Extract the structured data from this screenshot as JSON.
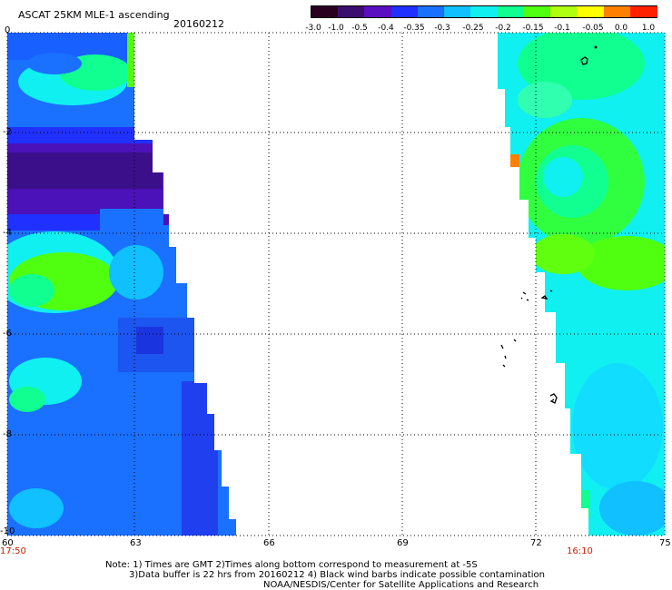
{
  "header": {
    "title": "ASCAT 25KM MLE-1 ascending",
    "date": "20160212"
  },
  "colorbar": {
    "labels": [
      "-3.0",
      "-1.0",
      "-0.5",
      "-0.4",
      "-0.35",
      "-0.3",
      "-0.25",
      "-0.2",
      "-0.15",
      "-0.1",
      "-0.05",
      "0.0",
      "1.0"
    ],
    "colors": [
      "#2a0020",
      "#3b0f6e",
      "#5a10c0",
      "#2030ff",
      "#1a70ff",
      "#10c0ff",
      "#10f0f0",
      "#10ff90",
      "#50ff10",
      "#b0ff10",
      "#ffff00",
      "#ff8000",
      "#ff2000"
    ]
  },
  "axes": {
    "x_ticks": [
      "60",
      "63",
      "66",
      "69",
      "72",
      "75"
    ],
    "y_ticks": [
      "0",
      "-2",
      "-4",
      "-6",
      "-8",
      "-10"
    ]
  },
  "times": {
    "left": "17:50",
    "right": "16:10"
  },
  "notes": {
    "line1": "Note: 1) Times are GMT 2)Times along bottom correspond to measurement at -5S",
    "line2": "3)Data buffer is 22 hrs from 20160212 4) Black wind barbs indicate possible contamination",
    "line3": "NOAA/NESDIS/Center for Satellite Applications and Research"
  }
}
